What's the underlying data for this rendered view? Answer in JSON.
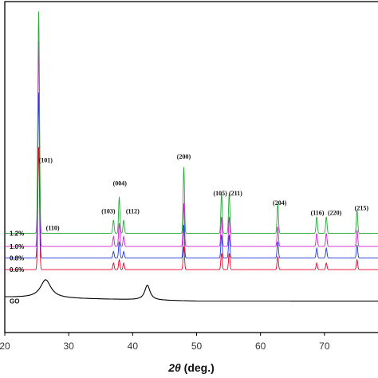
{
  "chart_data": {
    "type": "line",
    "xlabel": "2θ (deg.)",
    "xlabel_parts": {
      "symbol": "2θ",
      "unit": " (deg.)"
    },
    "xlim": [
      20,
      80
    ],
    "ylim": [
      0,
      1
    ],
    "x_ticks": [
      20,
      30,
      40,
      50,
      60,
      70
    ],
    "series": [
      {
        "name": "GO",
        "color": "#000000",
        "baseline": 0.095,
        "peaks": [
          [
            26.4,
            0.055,
            1.0
          ],
          [
            42.3,
            0.045,
            0.5
          ]
        ]
      },
      {
        "name": "0.6%",
        "color": "#e8002a",
        "baseline": 0.19,
        "peaks": [
          [
            25.3,
            0.37,
            0.18
          ],
          [
            37.0,
            0.02,
            0.15
          ],
          [
            37.9,
            0.03,
            0.15
          ],
          [
            38.6,
            0.02,
            0.15
          ],
          [
            48.0,
            0.07,
            0.15
          ],
          [
            53.9,
            0.05,
            0.15
          ],
          [
            55.1,
            0.05,
            0.15
          ],
          [
            62.7,
            0.04,
            0.15
          ],
          [
            68.8,
            0.02,
            0.15
          ],
          [
            70.3,
            0.02,
            0.15
          ],
          [
            75.1,
            0.03,
            0.15
          ]
        ]
      },
      {
        "name": "0.8%",
        "color": "#1f35e0",
        "baseline": 0.225,
        "peaks": [
          [
            25.3,
            0.5,
            0.18
          ],
          [
            37.0,
            0.02,
            0.15
          ],
          [
            37.9,
            0.05,
            0.15
          ],
          [
            38.6,
            0.02,
            0.15
          ],
          [
            48.0,
            0.1,
            0.15
          ],
          [
            53.9,
            0.07,
            0.15
          ],
          [
            55.1,
            0.07,
            0.15
          ],
          [
            62.7,
            0.05,
            0.15
          ],
          [
            68.8,
            0.03,
            0.15
          ],
          [
            70.3,
            0.03,
            0.15
          ],
          [
            75.1,
            0.04,
            0.15
          ]
        ]
      },
      {
        "name": "1.0%",
        "color": "#d020d0",
        "baseline": 0.26,
        "peaks": [
          [
            25.3,
            0.62,
            0.18
          ],
          [
            37.0,
            0.03,
            0.15
          ],
          [
            37.9,
            0.07,
            0.15
          ],
          [
            38.6,
            0.03,
            0.15
          ],
          [
            48.0,
            0.13,
            0.15
          ],
          [
            53.9,
            0.09,
            0.15
          ],
          [
            55.1,
            0.09,
            0.15
          ],
          [
            62.7,
            0.06,
            0.15
          ],
          [
            68.8,
            0.04,
            0.15
          ],
          [
            70.3,
            0.04,
            0.15
          ],
          [
            75.1,
            0.05,
            0.15
          ]
        ]
      },
      {
        "name": "1.2%",
        "color": "#27a83a",
        "baseline": 0.3,
        "peaks": [
          [
            25.3,
            0.67,
            0.18
          ],
          [
            37.0,
            0.04,
            0.15
          ],
          [
            37.9,
            0.11,
            0.15
          ],
          [
            38.6,
            0.04,
            0.15
          ],
          [
            48.0,
            0.2,
            0.15
          ],
          [
            53.9,
            0.12,
            0.15
          ],
          [
            55.1,
            0.12,
            0.15
          ],
          [
            62.7,
            0.09,
            0.15
          ],
          [
            68.8,
            0.05,
            0.15
          ],
          [
            70.3,
            0.05,
            0.15
          ],
          [
            75.1,
            0.07,
            0.15
          ]
        ]
      }
    ],
    "annotations": [
      {
        "text": "(101)",
        "x": 26.4,
        "y": 0.515
      },
      {
        "text": "(110)",
        "x": 27.5,
        "y": 0.31
      },
      {
        "text": "(103)",
        "x": 36.2,
        "y": 0.36
      },
      {
        "text": "(004)",
        "x": 38.0,
        "y": 0.445
      },
      {
        "text": "(112)",
        "x": 40.0,
        "y": 0.36
      },
      {
        "text": "(200)",
        "x": 48.0,
        "y": 0.525
      },
      {
        "text": "(105)",
        "x": 53.7,
        "y": 0.415
      },
      {
        "text": "(211)",
        "x": 56.1,
        "y": 0.415
      },
      {
        "text": "(204)",
        "x": 63.0,
        "y": 0.385
      },
      {
        "text": "(116)",
        "x": 68.9,
        "y": 0.355
      },
      {
        "text": "(220)",
        "x": 71.6,
        "y": 0.355
      },
      {
        "text": "(215)",
        "x": 75.8,
        "y": 0.37
      }
    ],
    "grid": false,
    "legend": "inline labels at left"
  }
}
